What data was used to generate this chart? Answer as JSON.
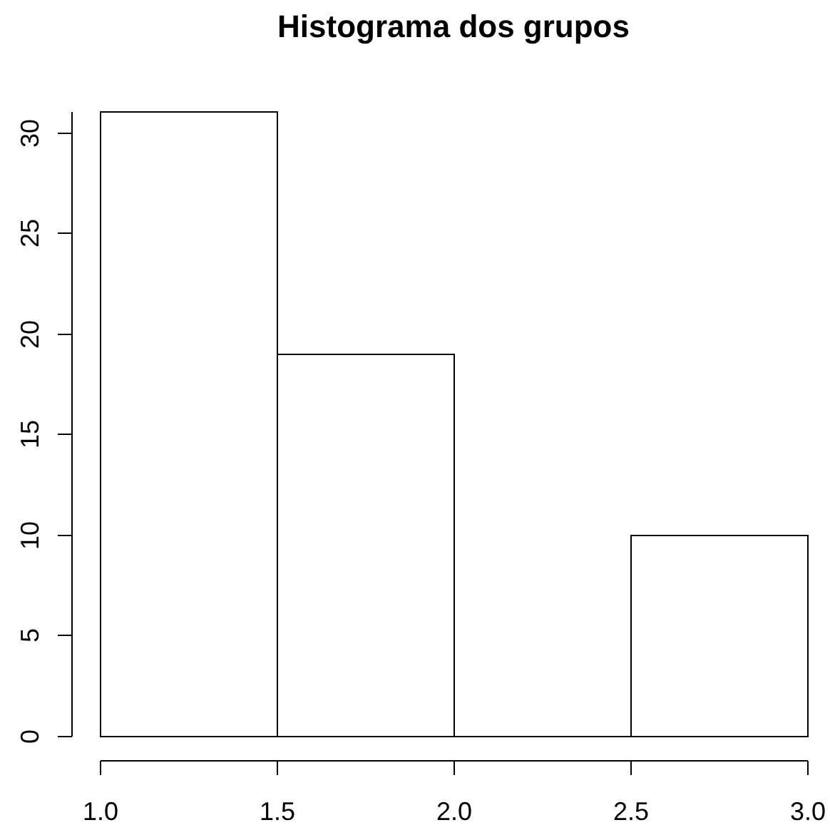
{
  "chart_data": {
    "type": "histogram",
    "title": "Histograma dos grupos",
    "bins": [
      1,
      1.5,
      2,
      2.5,
      3
    ],
    "values": [
      31,
      19,
      0,
      10
    ],
    "color": "#000000",
    "xlim": [
      1,
      3
    ],
    "ylim": [
      0,
      31
    ],
    "xticks": [
      {
        "value": 1,
        "label": "1.0"
      },
      1.5,
      {
        "value": 2,
        "label": "2.0"
      },
      2.5,
      {
        "value": 3,
        "label": "3.0"
      }
    ],
    "yticks": [
      0,
      5,
      10,
      15,
      20,
      25,
      30
    ]
  }
}
